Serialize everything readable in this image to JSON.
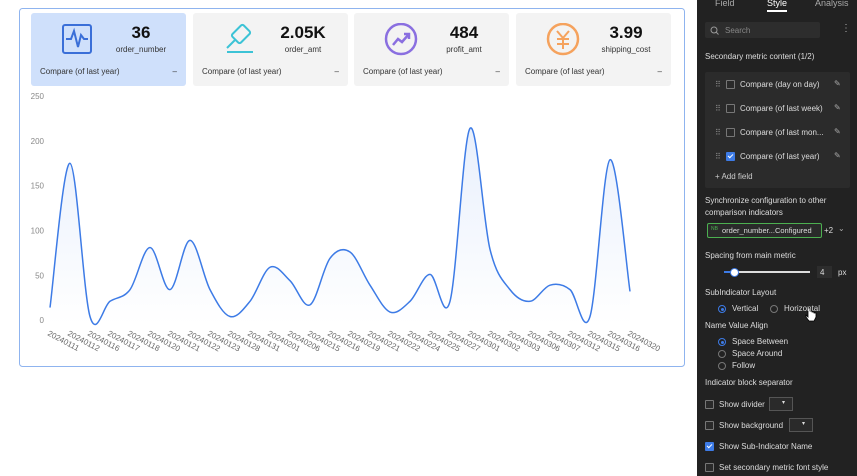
{
  "cards": [
    {
      "value": "36",
      "name": "order_number",
      "compare": "Compare (of last year)",
      "compare_value": "–"
    },
    {
      "value": "2.05K",
      "name": "order_amt",
      "compare": "Compare (of last year)",
      "compare_value": "–"
    },
    {
      "value": "484",
      "name": "profit_amt",
      "compare": "Compare (of last year)",
      "compare_value": "–"
    },
    {
      "value": "3.99",
      "name": "shipping_cost",
      "compare": "Compare (of last year)",
      "compare_value": "–"
    }
  ],
  "chart_data": {
    "type": "line",
    "color": "#3d7be6",
    "categories": [
      "20240111",
      "20240112",
      "20240116",
      "20240117",
      "20240118",
      "20240120",
      "20240121",
      "20240122",
      "20240123",
      "20240128",
      "20240131",
      "20240201",
      "20240206",
      "20240215",
      "20240216",
      "20240219",
      "20240221",
      "20240222",
      "20240224",
      "20240225",
      "20240227",
      "20240301",
      "20240302",
      "20240303",
      "20240306",
      "20240307",
      "20240312",
      "20240315",
      "20240316",
      "20240320"
    ],
    "values": [
      15,
      176,
      5,
      22,
      35,
      82,
      35,
      90,
      35,
      5,
      22,
      60,
      45,
      18,
      70,
      77,
      40,
      10,
      22,
      52,
      22,
      215,
      80,
      35,
      22,
      40,
      35,
      5,
      180,
      33
    ],
    "ylim": [
      0,
      250
    ],
    "yticks": [
      0,
      50,
      100,
      150,
      200,
      250
    ]
  },
  "panel": {
    "tabs": [
      "Field",
      "Style",
      "Analysis"
    ],
    "active_tab": 1,
    "search_placeholder": "Search",
    "section_title": "Secondary metric content (1/2)",
    "metric_items": [
      {
        "label": "Compare (day on day)",
        "checked": false
      },
      {
        "label": "Compare (of last week)",
        "checked": false
      },
      {
        "label": "Compare (of last mon...",
        "checked": false
      },
      {
        "label": "Compare (of last year)",
        "checked": true
      }
    ],
    "add_field": "Add field",
    "sync_label": "Synchronize configuration to other comparison indicators",
    "sync_tag": "order_number...Configured",
    "sync_more": "+2",
    "spacing_label": "Spacing from main metric",
    "spacing_value": 4,
    "spacing_unit": "px",
    "layout_label": "SubIndicator Layout",
    "layout_options": [
      {
        "label": "Vertical",
        "selected": true
      },
      {
        "label": "Horizontal",
        "selected": false
      }
    ],
    "align_label": "Name Value Align",
    "align_options": [
      {
        "label": "Space Between",
        "selected": true
      },
      {
        "label": "Space Around",
        "selected": false
      },
      {
        "label": "Follow",
        "selected": false
      }
    ],
    "separator_label": "Indicator block separator",
    "options": [
      {
        "label": "Show divider",
        "checked": false
      },
      {
        "label": "Show background",
        "checked": false
      },
      {
        "label": "Show Sub-Indicator Name",
        "checked": true
      },
      {
        "label": "Set secondary metric font style",
        "checked": false
      }
    ]
  }
}
